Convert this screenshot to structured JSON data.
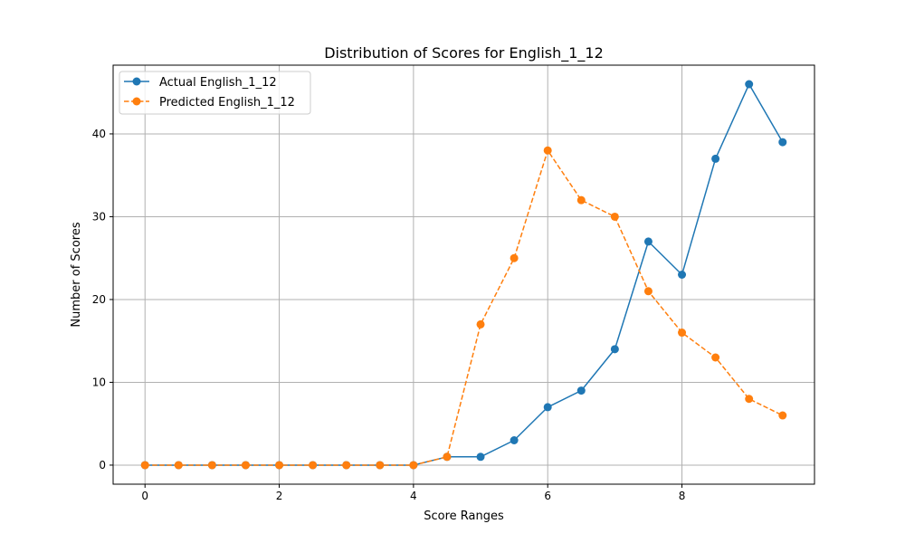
{
  "chart_data": {
    "type": "line",
    "title": "Distribution of Scores for English_1_12",
    "xlabel": "Score Ranges",
    "ylabel": "Number of Scores",
    "x": [
      0,
      0.5,
      1,
      1.5,
      2,
      2.5,
      3,
      3.5,
      4,
      4.5,
      5,
      5.5,
      6,
      6.5,
      7,
      7.5,
      8,
      8.5,
      9,
      9.5
    ],
    "xlim": [
      -0.475,
      9.975
    ],
    "ylim": [
      -2.3,
      48.3
    ],
    "xticks": [
      0,
      2,
      4,
      6,
      8
    ],
    "yticks": [
      0,
      10,
      20,
      30,
      40
    ],
    "grid": true,
    "legend_position": "top-left",
    "series": [
      {
        "name": "Actual English_1_12",
        "color": "#1f77b4",
        "line_style": "solid",
        "marker": "circle",
        "values": [
          0,
          0,
          0,
          0,
          0,
          0,
          0,
          0,
          0,
          1,
          1,
          3,
          7,
          9,
          14,
          27,
          23,
          37,
          46,
          39
        ]
      },
      {
        "name": "Predicted English_1_12",
        "color": "#ff7f0e",
        "line_style": "dashed",
        "marker": "circle",
        "values": [
          0,
          0,
          0,
          0,
          0,
          0,
          0,
          0,
          0,
          1,
          17,
          25,
          38,
          32,
          30,
          21,
          16,
          13,
          8,
          6
        ]
      }
    ]
  }
}
